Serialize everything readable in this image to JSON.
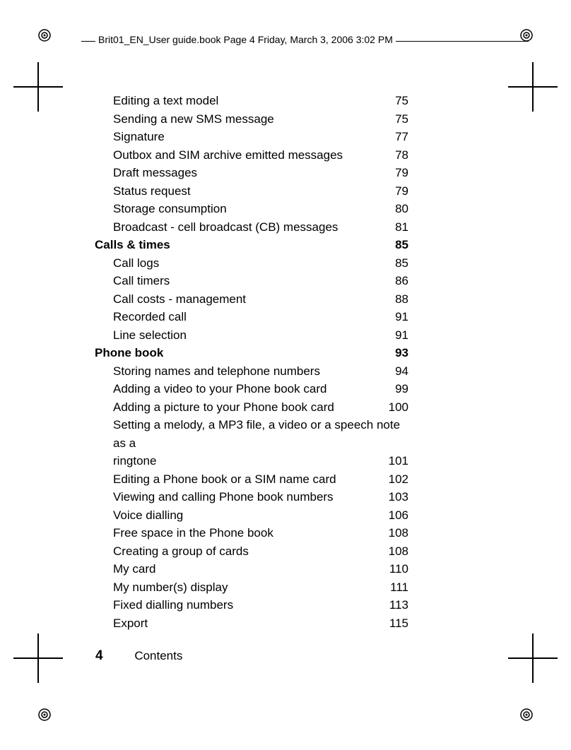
{
  "header": "Brit01_EN_User guide.book  Page 4  Friday, March 3, 2006  3:02 PM",
  "footer": {
    "page": "4",
    "label": "Contents"
  },
  "toc": [
    {
      "type": "sub",
      "label": "Editing a text model",
      "page": "75"
    },
    {
      "type": "sub",
      "label": "Sending a new SMS message",
      "page": "75"
    },
    {
      "type": "sub",
      "label": "Signature",
      "page": "77"
    },
    {
      "type": "sub",
      "label": "Outbox and SIM archive emitted messages",
      "page": "78"
    },
    {
      "type": "sub",
      "label": "Draft messages",
      "page": "79"
    },
    {
      "type": "sub",
      "label": "Status request",
      "page": "79"
    },
    {
      "type": "sub",
      "label": "Storage consumption",
      "page": "80"
    },
    {
      "type": "sub",
      "label": "Broadcast - cell broadcast (CB) messages",
      "page": "81"
    },
    {
      "type": "heading",
      "label": "Calls & times",
      "page": "85"
    },
    {
      "type": "sub",
      "label": "Call logs",
      "page": "85"
    },
    {
      "type": "sub",
      "label": "Call timers",
      "page": "86"
    },
    {
      "type": "sub",
      "label": "Call costs - management",
      "page": "88"
    },
    {
      "type": "sub",
      "label": "Recorded call",
      "page": "91"
    },
    {
      "type": "sub",
      "label": "Line selection",
      "page": "91"
    },
    {
      "type": "heading",
      "label": "Phone book",
      "page": "93"
    },
    {
      "type": "sub",
      "label": "Storing names and telephone numbers",
      "page": "94"
    },
    {
      "type": "sub",
      "label": "Adding a video to your Phone book card",
      "page": "99"
    },
    {
      "type": "sub",
      "label": "Adding a picture to your Phone book card",
      "page": "100"
    },
    {
      "type": "wrap",
      "label_first": "Setting a melody, a MP3 file, a video or a speech note as a",
      "label_second": "ringtone",
      "page": "101"
    },
    {
      "type": "sub",
      "label": "Editing a Phone book or a SIM name card",
      "page": "102"
    },
    {
      "type": "sub",
      "label": "Viewing and calling Phone book numbers",
      "page": "103"
    },
    {
      "type": "sub",
      "label": "Voice dialling",
      "page": "106"
    },
    {
      "type": "sub",
      "label": "Free space in the Phone book",
      "page": "108"
    },
    {
      "type": "sub",
      "label": "Creating a group of cards",
      "page": "108"
    },
    {
      "type": "sub",
      "label": "My card",
      "page": "110"
    },
    {
      "type": "sub",
      "label": "My number(s) display",
      "page": "111"
    },
    {
      "type": "sub",
      "label": "Fixed dialling numbers",
      "page": "113"
    },
    {
      "type": "sub",
      "label": "Export",
      "page": "115"
    }
  ]
}
